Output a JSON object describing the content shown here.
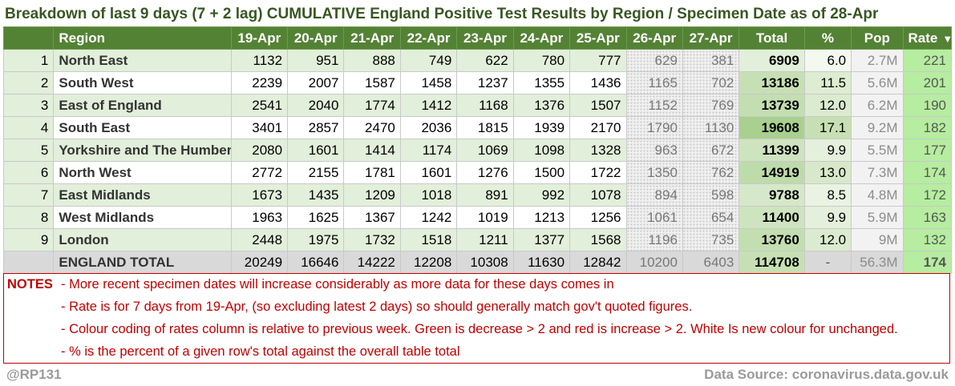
{
  "title": "Breakdown of last 9 days (7 + 2 lag) CUMULATIVE England Positive Test Results by Region / Specimen Date as of 28-Apr",
  "headers": {
    "rank": "",
    "region": "Region",
    "dates": [
      "19-Apr",
      "20-Apr",
      "21-Apr",
      "22-Apr",
      "23-Apr",
      "24-Apr",
      "25-Apr",
      "26-Apr",
      "27-Apr"
    ],
    "total": "Total",
    "pct": "%",
    "pop": "Pop",
    "rate": "Rate",
    "rate_sort_icon": "sort-descending-icon"
  },
  "rows": [
    {
      "rank": "1",
      "region": "North East",
      "values": [
        "1132",
        "951",
        "888",
        "749",
        "622",
        "780",
        "777",
        "629",
        "381"
      ],
      "total": "6909",
      "pct": "6.0",
      "pop": "2.7M",
      "rate": "221"
    },
    {
      "rank": "2",
      "region": "South West",
      "values": [
        "2239",
        "2007",
        "1587",
        "1458",
        "1237",
        "1355",
        "1436",
        "1165",
        "702"
      ],
      "total": "13186",
      "pct": "11.5",
      "pop": "5.6M",
      "rate": "201"
    },
    {
      "rank": "3",
      "region": "East of England",
      "values": [
        "2541",
        "2040",
        "1774",
        "1412",
        "1168",
        "1376",
        "1507",
        "1152",
        "769"
      ],
      "total": "13739",
      "pct": "12.0",
      "pop": "6.2M",
      "rate": "190"
    },
    {
      "rank": "4",
      "region": "South East",
      "values": [
        "3401",
        "2857",
        "2470",
        "2036",
        "1815",
        "1939",
        "2170",
        "1790",
        "1130"
      ],
      "total": "19608",
      "pct": "17.1",
      "pop": "9.2M",
      "rate": "182"
    },
    {
      "rank": "5",
      "region": "Yorkshire and The Humber",
      "values": [
        "2080",
        "1601",
        "1414",
        "1174",
        "1069",
        "1098",
        "1328",
        "963",
        "672"
      ],
      "total": "11399",
      "pct": "9.9",
      "pop": "5.5M",
      "rate": "177"
    },
    {
      "rank": "6",
      "region": "North West",
      "values": [
        "2772",
        "2155",
        "1781",
        "1601",
        "1276",
        "1500",
        "1722",
        "1350",
        "762"
      ],
      "total": "14919",
      "pct": "13.0",
      "pop": "7.3M",
      "rate": "174"
    },
    {
      "rank": "7",
      "region": "East Midlands",
      "values": [
        "1673",
        "1435",
        "1209",
        "1018",
        "891",
        "992",
        "1078",
        "894",
        "598"
      ],
      "total": "9788",
      "pct": "8.5",
      "pop": "4.8M",
      "rate": "172"
    },
    {
      "rank": "8",
      "region": "West Midlands",
      "values": [
        "1963",
        "1625",
        "1367",
        "1242",
        "1019",
        "1213",
        "1256",
        "1061",
        "654"
      ],
      "total": "11400",
      "pct": "9.9",
      "pop": "5.9M",
      "rate": "163"
    },
    {
      "rank": "9",
      "region": "London",
      "values": [
        "2448",
        "1975",
        "1732",
        "1518",
        "1211",
        "1377",
        "1568",
        "1196",
        "735"
      ],
      "total": "13760",
      "pct": "12.0",
      "pop": "9M",
      "rate": "132"
    }
  ],
  "total_row": {
    "rank": "",
    "region": "ENGLAND TOTAL",
    "values": [
      "20249",
      "16646",
      "14222",
      "12208",
      "10308",
      "11630",
      "12842",
      "10200",
      "6403"
    ],
    "total": "114708",
    "pct": "-",
    "pop": "56.3M",
    "rate": "174"
  },
  "colors": {
    "header_bg": "#548235",
    "title": "#385723",
    "rate_decrease": "#b6eda0",
    "total_shade_strong": "#c6e0b4",
    "total_shade_light": "#e2efda",
    "notes": "#c00000"
  },
  "notes": {
    "label": "NOTES",
    "lines": [
      "- More recent specimen dates will increase considerably as more data for these days comes in",
      "- Rate is for 7 days from 19-Apr, (so excluding latest 2 days) so should generally match gov't quoted figures.",
      "- Colour coding of rates column is relative to previous week. Green is decrease > 2 and red is increase > 2. White Is new colour for unchanged.",
      "- % is the percent of a given row's total against the overall table total"
    ]
  },
  "footer": {
    "handle": "@RP131",
    "source": "Data Source: coronavirus.data.gov.uk"
  }
}
